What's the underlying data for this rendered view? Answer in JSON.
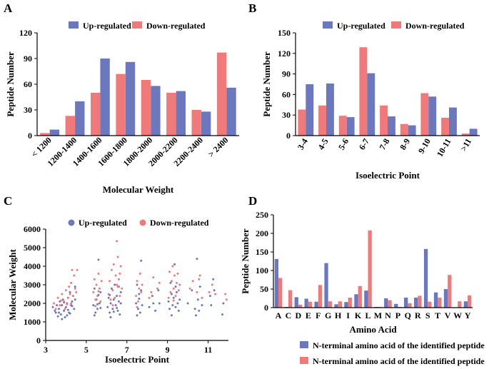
{
  "colors": {
    "up": "#6B78BE",
    "down": "#F07A7A",
    "axis": "#000000"
  },
  "chart_data": [
    {
      "panel": "A",
      "type": "bar",
      "xlabel": "Molecular Weight",
      "ylabel": "Peptide Number",
      "ylim": [
        0,
        120
      ],
      "yticks": [
        0,
        30,
        60,
        90,
        120
      ],
      "categories": [
        "< 1200",
        "1200-1400",
        "1400-1600",
        "1600-1800",
        "1800-2000",
        "2000-2200",
        "2200-2400",
        "> 2400"
      ],
      "series": [
        {
          "name": "Down-regulated",
          "key": "down",
          "values": [
            3,
            23,
            50,
            72,
            65,
            50,
            30,
            97
          ]
        },
        {
          "name": "Up-regulated",
          "key": "up",
          "values": [
            7,
            40,
            90,
            86,
            58,
            52,
            28,
            56
          ]
        }
      ],
      "legend": [
        "Up-regulated",
        "Down-regulated"
      ]
    },
    {
      "panel": "B",
      "type": "bar",
      "xlabel": "Isoelectric Point",
      "ylabel": "Peptide Number",
      "ylim": [
        0,
        150
      ],
      "yticks": [
        0,
        30,
        60,
        90,
        120,
        150
      ],
      "categories": [
        "3-4",
        "4-5",
        "5-6",
        "6-7",
        "7-8",
        "8-9",
        "9-10",
        "10-11",
        ">11"
      ],
      "series": [
        {
          "name": "Down-regulated",
          "key": "down",
          "values": [
            38,
            44,
            29,
            129,
            44,
            17,
            62,
            26,
            3
          ]
        },
        {
          "name": "Up-regulated",
          "key": "up",
          "values": [
            75,
            76,
            27,
            91,
            28,
            15,
            57,
            41,
            10
          ]
        }
      ],
      "legend": [
        "Up-regulated",
        "Down-regulated"
      ]
    },
    {
      "panel": "C",
      "type": "scatter",
      "xlabel": "Isoelectric Point",
      "ylabel": "Molecular Weight",
      "xlim": [
        3,
        12
      ],
      "xticks": [
        3,
        5,
        7,
        9,
        11
      ],
      "ylim": [
        0,
        6000
      ],
      "yticks": [
        0,
        1000,
        2000,
        3000,
        4000,
        5000,
        6000
      ],
      "legend": [
        "Up-regulated",
        "Down-regulated"
      ],
      "series": [
        {
          "name": "Up-regulated",
          "key": "up",
          "points": [
            [
              3.35,
              1800
            ],
            [
              3.45,
              1600
            ],
            [
              3.5,
              1500
            ],
            [
              3.55,
              1900
            ],
            [
              3.6,
              1300
            ],
            [
              3.65,
              1700
            ],
            [
              3.7,
              2100
            ],
            [
              3.75,
              1400
            ],
            [
              3.8,
              1900
            ],
            [
              3.85,
              2200
            ],
            [
              3.9,
              1600
            ],
            [
              3.95,
              1250
            ],
            [
              4.0,
              1800
            ],
            [
              4.05,
              2000
            ],
            [
              4.1,
              2300
            ],
            [
              4.15,
              1500
            ],
            [
              4.2,
              2600
            ],
            [
              4.25,
              1900
            ],
            [
              4.3,
              2100
            ],
            [
              4.35,
              2400
            ],
            [
              4.4,
              1700
            ],
            [
              4.45,
              2900
            ],
            [
              3.9,
              2050
            ],
            [
              4.05,
              1350
            ],
            [
              4.2,
              1450
            ],
            [
              4.3,
              1850
            ],
            [
              4.45,
              2200
            ],
            [
              3.65,
              1500
            ],
            [
              3.8,
              1150
            ],
            [
              4.1,
              1650
            ],
            [
              5.35,
              1900
            ],
            [
              5.4,
              2800
            ],
            [
              5.45,
              1500
            ],
            [
              5.5,
              2200
            ],
            [
              5.55,
              1700
            ],
            [
              5.6,
              4350
            ],
            [
              5.65,
              2000
            ],
            [
              5.7,
              2600
            ],
            [
              5.4,
              1350
            ],
            [
              5.55,
              1950
            ],
            [
              5.6,
              2450
            ],
            [
              5.7,
              1750
            ],
            [
              6.05,
              1800
            ],
            [
              6.1,
              2300
            ],
            [
              6.15,
              1500
            ],
            [
              6.2,
              2000
            ],
            [
              6.25,
              2800
            ],
            [
              6.3,
              1700
            ],
            [
              6.35,
              2200
            ],
            [
              6.4,
              3000
            ],
            [
              6.45,
              1900
            ],
            [
              6.5,
              2400
            ],
            [
              6.55,
              1600
            ],
            [
              6.6,
              2100
            ],
            [
              6.65,
              1400
            ],
            [
              6.7,
              2600
            ],
            [
              6.2,
              1250
            ],
            [
              6.35,
              1550
            ],
            [
              6.5,
              1750
            ],
            [
              6.6,
              2900
            ],
            [
              6.7,
              2000
            ],
            [
              6.15,
              2450
            ],
            [
              7.45,
              2000
            ],
            [
              7.5,
              3000
            ],
            [
              7.55,
              1700
            ],
            [
              7.6,
              2500
            ],
            [
              7.65,
              1500
            ],
            [
              7.7,
              4300
            ],
            [
              7.75,
              1900
            ],
            [
              7.6,
              2250
            ],
            [
              7.5,
              1350
            ],
            [
              7.7,
              2700
            ],
            [
              8.1,
              1800
            ],
            [
              8.25,
              2400
            ],
            [
              8.4,
              1600
            ],
            [
              8.55,
              2700
            ],
            [
              8.6,
              2000
            ],
            [
              8.3,
              2000
            ],
            [
              9.05,
              2100
            ],
            [
              9.1,
              1700
            ],
            [
              9.15,
              3100
            ],
            [
              9.2,
              2500
            ],
            [
              9.25,
              1900
            ],
            [
              9.3,
              2300
            ],
            [
              9.35,
              4100
            ],
            [
              9.4,
              1800
            ],
            [
              9.45,
              2600
            ],
            [
              9.5,
              2000
            ],
            [
              9.55,
              1600
            ],
            [
              9.2,
              1350
            ],
            [
              9.4,
              2900
            ],
            [
              9.6,
              2200
            ],
            [
              10.0,
              2000
            ],
            [
              10.2,
              2700
            ],
            [
              10.35,
              1700
            ],
            [
              10.45,
              4400
            ],
            [
              10.5,
              2200
            ],
            [
              10.55,
              1600
            ],
            [
              10.6,
              2900
            ],
            [
              10.4,
              1350
            ],
            [
              10.7,
              1900
            ],
            [
              11.1,
              2400
            ],
            [
              11.15,
              1900
            ],
            [
              11.25,
              3300
            ],
            [
              11.3,
              2700
            ],
            [
              11.7,
              1400
            ],
            [
              11.75,
              2000
            ]
          ]
        },
        {
          "name": "Down-regulated",
          "key": "down",
          "points": [
            [
              3.4,
              2000
            ],
            [
              3.5,
              1700
            ],
            [
              3.6,
              2300
            ],
            [
              3.7,
              1900
            ],
            [
              3.8,
              2500
            ],
            [
              3.9,
              2100
            ],
            [
              4.0,
              2700
            ],
            [
              4.1,
              2300
            ],
            [
              4.15,
              2900
            ],
            [
              4.2,
              2500
            ],
            [
              4.25,
              3100
            ],
            [
              4.3,
              3800
            ],
            [
              4.35,
              2400
            ],
            [
              4.4,
              3500
            ],
            [
              4.45,
              2800
            ],
            [
              4.5,
              2600
            ],
            [
              4.55,
              3800
            ],
            [
              3.95,
              1700
            ],
            [
              4.05,
              1950
            ],
            [
              4.25,
              2000
            ],
            [
              3.75,
              2150
            ],
            [
              5.35,
              2600
            ],
            [
              5.4,
              3300
            ],
            [
              5.45,
              2200
            ],
            [
              5.5,
              3000
            ],
            [
              5.55,
              2400
            ],
            [
              5.6,
              3600
            ],
            [
              5.65,
              2800
            ],
            [
              5.7,
              2100
            ],
            [
              5.75,
              3200
            ],
            [
              5.45,
              1850
            ],
            [
              5.6,
              2650
            ],
            [
              6.1,
              2500
            ],
            [
              6.15,
              3200
            ],
            [
              6.2,
              2200
            ],
            [
              6.25,
              3800
            ],
            [
              6.3,
              2700
            ],
            [
              6.35,
              4100
            ],
            [
              6.4,
              2300
            ],
            [
              6.45,
              3500
            ],
            [
              6.5,
              5350
            ],
            [
              6.55,
              2900
            ],
            [
              6.6,
              3300
            ],
            [
              6.65,
              2400
            ],
            [
              6.7,
              4000
            ],
            [
              6.75,
              2800
            ],
            [
              6.3,
              1900
            ],
            [
              6.5,
              3000
            ],
            [
              6.55,
              4500
            ],
            [
              6.65,
              3600
            ],
            [
              7.45,
              2400
            ],
            [
              7.5,
              3200
            ],
            [
              7.55,
              2100
            ],
            [
              7.6,
              2800
            ],
            [
              7.65,
              3600
            ],
            [
              7.7,
              2600
            ],
            [
              7.75,
              3000
            ],
            [
              7.5,
              1800
            ],
            [
              8.1,
              2300
            ],
            [
              8.2,
              2600
            ],
            [
              8.3,
              3400
            ],
            [
              8.5,
              2800
            ],
            [
              8.6,
              3100
            ],
            [
              9.05,
              2300
            ],
            [
              9.1,
              3700
            ],
            [
              9.15,
              2600
            ],
            [
              9.2,
              3200
            ],
            [
              9.25,
              4000
            ],
            [
              9.3,
              2800
            ],
            [
              9.35,
              3500
            ],
            [
              9.4,
              2400
            ],
            [
              9.45,
              3100
            ],
            [
              9.5,
              3600
            ],
            [
              9.55,
              2700
            ],
            [
              9.6,
              3000
            ],
            [
              9.3,
              2150
            ],
            [
              10.1,
              2800
            ],
            [
              10.25,
              3200
            ],
            [
              10.45,
              2600
            ],
            [
              10.55,
              3300
            ],
            [
              10.6,
              3500
            ],
            [
              10.7,
              2300
            ],
            [
              11.05,
              2600
            ],
            [
              11.2,
              3000
            ],
            [
              11.35,
              2500
            ],
            [
              11.85,
              2500
            ],
            [
              11.9,
              2200
            ]
          ]
        }
      ]
    },
    {
      "panel": "D",
      "type": "bar",
      "xlabel": "Amino Acid",
      "ylabel": "Peptide Number",
      "ylim": [
        0,
        250
      ],
      "yticks": [
        0,
        50,
        100,
        150,
        200,
        250
      ],
      "categories": [
        "A",
        "C",
        "D",
        "E",
        "F",
        "G",
        "H",
        "I",
        "K",
        "L",
        "M",
        "N",
        "P",
        "Q",
        "R",
        "S",
        "T",
        "V",
        "W",
        "Y"
      ],
      "series": [
        {
          "name": "N-terminal amino acid of the identified peptide",
          "key": "up",
          "values": [
            131,
            2,
            28,
            24,
            16,
            120,
            9,
            15,
            36,
            46,
            2,
            25,
            10,
            27,
            27,
            158,
            41,
            50,
            0,
            17
          ]
        },
        {
          "name": "N-terminal amino acid of the identified peptide",
          "key": "down",
          "values": [
            80,
            47,
            8,
            16,
            61,
            17,
            17,
            27,
            58,
            208,
            2,
            20,
            2,
            12,
            32,
            16,
            27,
            88,
            17,
            33
          ]
        }
      ],
      "legend": [
        "N-terminal amino acid of the identified peptide",
        "N-terminal amino acid of the identified peptide"
      ]
    }
  ]
}
